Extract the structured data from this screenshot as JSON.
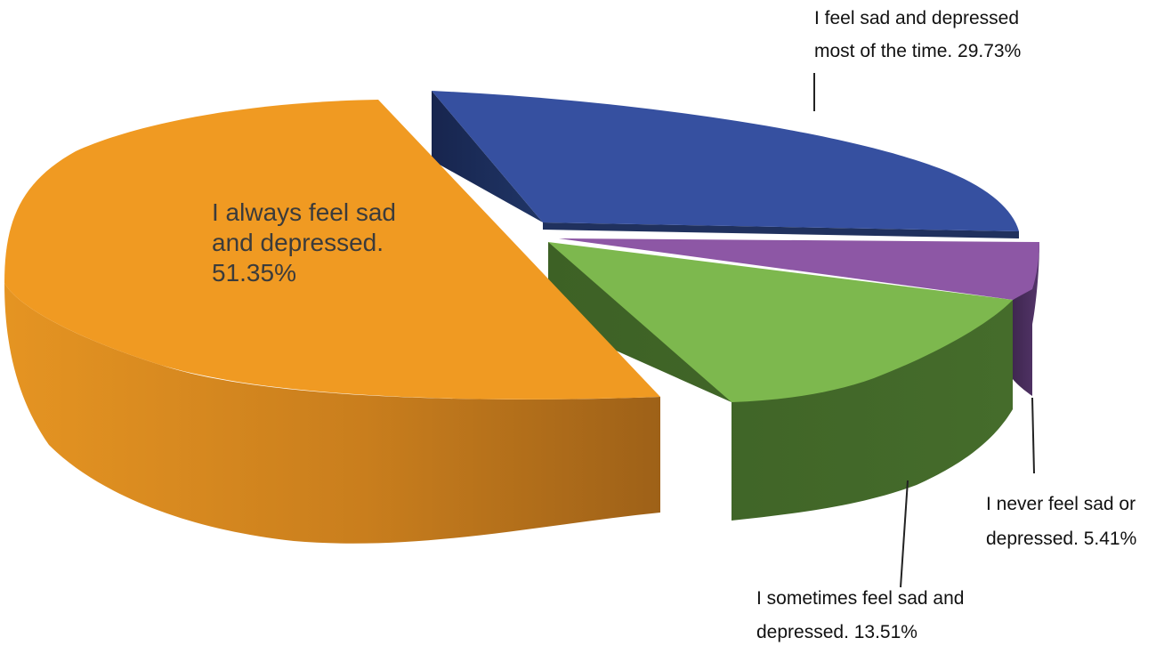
{
  "chart_data": {
    "type": "pie",
    "title": "",
    "categories": [
      "I always feel sad and depressed.",
      "I feel sad and depressed most of the time.",
      "I never feel sad or depressed.",
      "I sometimes feel sad and depressed."
    ],
    "values": [
      51.35,
      29.73,
      5.41,
      13.51
    ],
    "value_suffix": "%",
    "legend": "none",
    "grid": false,
    "three_d": true,
    "exploded": true,
    "colors": {
      "I always feel sad and depressed.": "#F09A22",
      "I feel sad and depressed most of the time.": "#3650A0",
      "I never feel sad or depressed.": "#8D57A5",
      "I sometimes feel sad and depressed.": "#7DB84E"
    },
    "label_lines": {
      "I always feel sad and depressed.": [
        "I always feel sad",
        "and depressed.",
        "51.35%"
      ],
      "I feel sad and depressed most of the time.": [
        "I feel sad and depressed",
        "most of the time. 29.73%"
      ],
      "I never feel sad or depressed.": [
        "I never feel sad or",
        "depressed. 5.41%"
      ],
      "I sometimes feel sad and depressed.": [
        "I sometimes feel sad and",
        "depressed. 13.51%"
      ]
    }
  }
}
